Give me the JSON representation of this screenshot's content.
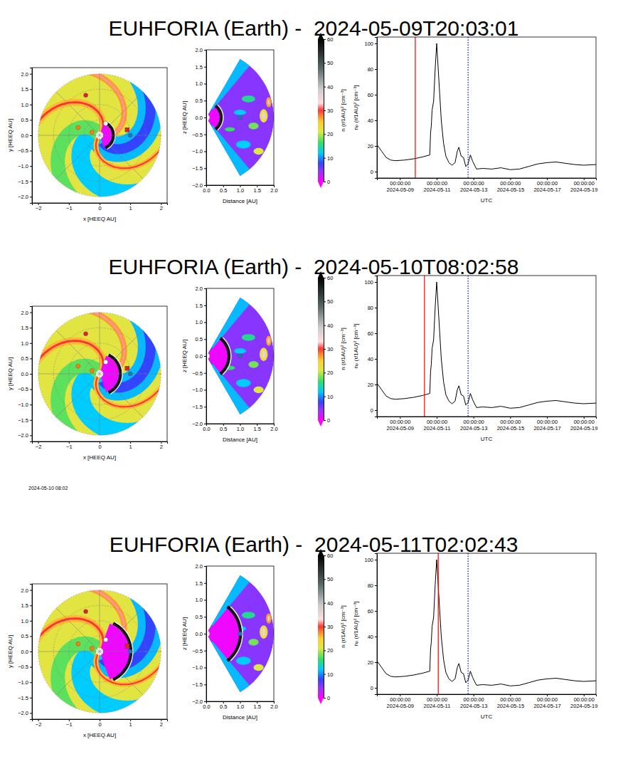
{
  "chart_data": [
    {
      "type": "map",
      "title": "EUHFORIA (Earth) -  2024-05-09T20:03:01",
      "xlabel": "x [HEEQ AU]",
      "ylabel": "y [HEEQ AU]",
      "xlim": [
        -2.2,
        2.2
      ],
      "ylim": [
        -2.2,
        2.2
      ],
      "xticks": [
        {
          "value": -2,
          "label": "−2"
        },
        {
          "value": -1,
          "label": "−1"
        },
        0,
        1,
        2
      ],
      "yticks": [
        {
          "value": -2,
          "label": "−2.0"
        },
        {
          "value": -1.5,
          "label": "−1.5"
        },
        {
          "value": -1,
          "label": "−1.0"
        },
        {
          "value": -0.5,
          "label": "−0.5"
        },
        {
          "value": 0,
          "label": "0.0"
        },
        0.5,
        {
          "value": 1,
          "label": "1.0"
        },
        1.5,
        {
          "value": 2,
          "label": "2.0"
        }
      ],
      "grid": true,
      "series": [
        {
          "marker": "circle",
          "x": [
            -0.45,
            -0.7,
            -0.25,
            0.2,
            1.0
          ],
          "values": [
            1.3,
            0.25,
            0.1,
            0.38,
            0.0
          ],
          "colors": [
            "#d62728",
            "#ff7f0e",
            "#ff7f0e",
            "#ffffff",
            "#1f77b4"
          ]
        },
        {
          "marker": "square",
          "x": [
            0.9
          ],
          "values": [
            0.18
          ],
          "color": "#d62728"
        }
      ]
    },
    {
      "type": "wedge",
      "xlabel": "Distance [AU]",
      "ylabel": "z [HEEQ AU]",
      "xlim": [
        0,
        2
      ],
      "ylim": [
        -2,
        2
      ],
      "xticks": [
        {
          "value": 0,
          "label": "0.0"
        },
        0.5,
        {
          "value": 1,
          "label": "1.0"
        },
        1.5,
        {
          "value": 2,
          "label": "2.0"
        }
      ],
      "yticks": [
        {
          "value": -2,
          "label": "−2.0"
        },
        {
          "value": -1.5,
          "label": "−1.5"
        },
        {
          "value": -1,
          "label": "−1.0"
        },
        {
          "value": -0.5,
          "label": "−0.5"
        },
        {
          "value": 0,
          "label": "0.0"
        },
        0.5,
        {
          "value": 1,
          "label": "1.0"
        },
        1.5,
        {
          "value": 2,
          "label": "2.0"
        }
      ],
      "series": [
        {
          "marker": "circle",
          "x": [
            1.0
          ],
          "values": [
            0.0
          ],
          "color": "#1f77b4"
        }
      ],
      "colorbar": {
        "range": [
          0,
          60
        ],
        "ticks": [
          0,
          10,
          20,
          30,
          40,
          50,
          60
        ],
        "label": "n (r/1AU)² [cm⁻³]"
      }
    },
    {
      "type": "line",
      "xlabel": "UTC",
      "ylabel": "nₚ (r/1AU)² [cm⁻³]",
      "xlim": [
        "2024-05-07T18:00",
        "2024-05-19T16:00"
      ],
      "ylim": [
        -5,
        105
      ],
      "xticks": [
        {
          "value": "2024-05-09T00:00",
          "label": "00:00:00\n2024-05-09"
        },
        {
          "value": "2024-05-11T00:00",
          "label": "00:00:00\n2024-05-11"
        },
        {
          "value": "2024-05-13T00:00",
          "label": "00:00:00\n2024-05-13"
        },
        {
          "value": "2024-05-15T00:00",
          "label": "00:00:00\n2024-05-15"
        },
        {
          "value": "2024-05-17T00:00",
          "label": "00:00:00\n2024-05-17"
        },
        {
          "value": "2024-05-19T00:00",
          "label": "00:00:00\n2024-05-19"
        }
      ],
      "yticks": [
        0,
        20,
        40,
        60,
        80,
        100
      ],
      "x": [
        "2024-05-07T18:00",
        "2024-05-08T00:00",
        "2024-05-08T06:00",
        "2024-05-08T12:00",
        "2024-05-08T18:00",
        "2024-05-09T06:00",
        "2024-05-09T18:00",
        "2024-05-10T06:00",
        "2024-05-10T15:00",
        "2024-05-10T16:00",
        "2024-05-10T17:00",
        "2024-05-10T18:00",
        "2024-05-10T20:00",
        "2024-05-10T22:00",
        "2024-05-11T00:00",
        "2024-05-11T03:00",
        "2024-05-11T06:00",
        "2024-05-11T09:00",
        "2024-05-11T12:00",
        "2024-05-11T16:00",
        "2024-05-11T20:00",
        "2024-05-12T00:00",
        "2024-05-12T03:00",
        "2024-05-12T05:00",
        "2024-05-12T08:00",
        "2024-05-12T11:00",
        "2024-05-12T14:00",
        "2024-05-12T17:00",
        "2024-05-12T20:00",
        "2024-05-12T23:00",
        "2024-05-13T04:00",
        "2024-05-13T12:00",
        "2024-05-14T00:00",
        "2024-05-14T12:00",
        "2024-05-15T00:00",
        "2024-05-15T12:00",
        "2024-05-16T00:00",
        "2024-05-16T12:00",
        "2024-05-17T00:00",
        "2024-05-17T12:00",
        "2024-05-18T00:00",
        "2024-05-18T12:00",
        "2024-05-19T00:00",
        "2024-05-19T16:00"
      ],
      "series": [
        {
          "color": "#000000",
          "values": [
            21,
            16,
            11,
            9,
            8.5,
            9,
            10,
            11.5,
            13,
            30,
            36,
            48,
            55,
            80,
            100,
            70,
            40,
            22,
            12,
            7,
            5,
            7,
            16,
            19,
            12,
            11,
            4,
            6,
            13,
            8,
            2,
            2.5,
            2,
            3,
            1.5,
            2,
            4,
            6,
            7,
            7.5,
            6.5,
            5.5,
            5,
            5.5
          ]
        }
      ],
      "vlines": [
        {
          "x": "2024-05-09T20:03:01",
          "color": "#ff0000",
          "line_style": "solid"
        },
        {
          "x": "2024-05-12T17:00",
          "color": "#0000ff",
          "line_style": "dotted"
        }
      ]
    },
    {
      "type": "map",
      "title": "EUHFORIA (Earth) -  2024-05-10T08:02:58",
      "xlabel": "x [HEEQ AU]",
      "ylabel": "y [HEEQ AU]",
      "xlim": [
        -2.2,
        2.2
      ],
      "ylim": [
        -2.2,
        2.2
      ],
      "xticks": [
        {
          "value": -2,
          "label": "−2"
        },
        {
          "value": -1,
          "label": "−1"
        },
        0,
        1,
        2
      ],
      "yticks": [
        {
          "value": -2,
          "label": "−2.0"
        },
        {
          "value": -1.5,
          "label": "−1.5"
        },
        {
          "value": -1,
          "label": "−1.0"
        },
        {
          "value": -0.5,
          "label": "−0.5"
        },
        {
          "value": 0,
          "label": "0.0"
        },
        0.5,
        {
          "value": 1,
          "label": "1.0"
        },
        1.5,
        {
          "value": 2,
          "label": "2.0"
        }
      ],
      "grid": true,
      "annotations": [
        "2024-05-10 08:02"
      ],
      "series": [
        {
          "marker": "circle",
          "x": [
            -0.45,
            -0.7,
            -0.25,
            0.2,
            1.0
          ],
          "values": [
            1.3,
            0.25,
            0.1,
            0.38,
            0.0
          ],
          "colors": [
            "#d62728",
            "#ff7f0e",
            "#ff7f0e",
            "#ffffff",
            "#1f77b4"
          ]
        },
        {
          "marker": "square",
          "x": [
            0.9
          ],
          "values": [
            0.18
          ],
          "color": "#d62728"
        }
      ]
    },
    {
      "type": "wedge",
      "xlabel": "Distance [AU]",
      "ylabel": "z [HEEQ AU]",
      "xlim": [
        0,
        2
      ],
      "ylim": [
        -2,
        2
      ],
      "xticks": [
        {
          "value": 0,
          "label": "0.0"
        },
        0.5,
        {
          "value": 1,
          "label": "1.0"
        },
        1.5,
        {
          "value": 2,
          "label": "2.0"
        }
      ],
      "yticks": [
        {
          "value": -2,
          "label": "−2.0"
        },
        {
          "value": -1.5,
          "label": "−1.5"
        },
        {
          "value": -1,
          "label": "−1.0"
        },
        {
          "value": -0.5,
          "label": "−0.5"
        },
        {
          "value": 0,
          "label": "0.0"
        },
        0.5,
        {
          "value": 1,
          "label": "1.0"
        },
        1.5,
        {
          "value": 2,
          "label": "2.0"
        }
      ],
      "series": [
        {
          "marker": "circle",
          "x": [
            1.0
          ],
          "values": [
            0.0
          ],
          "color": "#1f77b4"
        }
      ],
      "colorbar": {
        "range": [
          0,
          60
        ],
        "ticks": [
          0,
          10,
          20,
          30,
          40,
          50,
          60
        ],
        "label": "n (r/1AU)² [cm⁻³]"
      }
    },
    {
      "type": "line",
      "xlabel": "UTC",
      "ylabel": "nₚ (r/1AU)² [cm⁻³]",
      "xlim": [
        "2024-05-07T18:00",
        "2024-05-19T16:00"
      ],
      "ylim": [
        -5,
        105
      ],
      "xticks": [
        {
          "value": "2024-05-09T00:00",
          "label": "00:00:00\n2024-05-09"
        },
        {
          "value": "2024-05-11T00:00",
          "label": "00:00:00\n2024-05-11"
        },
        {
          "value": "2024-05-13T00:00",
          "label": "00:00:00\n2024-05-13"
        },
        {
          "value": "2024-05-15T00:00",
          "label": "00:00:00\n2024-05-15"
        },
        {
          "value": "2024-05-17T00:00",
          "label": "00:00:00\n2024-05-17"
        },
        {
          "value": "2024-05-19T00:00",
          "label": "00:00:00\n2024-05-19"
        }
      ],
      "yticks": [
        0,
        20,
        40,
        60,
        80,
        100
      ],
      "x": [
        "2024-05-07T18:00",
        "2024-05-08T00:00",
        "2024-05-08T06:00",
        "2024-05-08T12:00",
        "2024-05-08T18:00",
        "2024-05-09T06:00",
        "2024-05-09T18:00",
        "2024-05-10T06:00",
        "2024-05-10T15:00",
        "2024-05-10T16:00",
        "2024-05-10T17:00",
        "2024-05-10T18:00",
        "2024-05-10T20:00",
        "2024-05-10T22:00",
        "2024-05-11T00:00",
        "2024-05-11T03:00",
        "2024-05-11T06:00",
        "2024-05-11T09:00",
        "2024-05-11T12:00",
        "2024-05-11T16:00",
        "2024-05-11T20:00",
        "2024-05-12T00:00",
        "2024-05-12T03:00",
        "2024-05-12T05:00",
        "2024-05-12T08:00",
        "2024-05-12T11:00",
        "2024-05-12T14:00",
        "2024-05-12T17:00",
        "2024-05-12T20:00",
        "2024-05-12T23:00",
        "2024-05-13T04:00",
        "2024-05-13T12:00",
        "2024-05-14T00:00",
        "2024-05-14T12:00",
        "2024-05-15T00:00",
        "2024-05-15T12:00",
        "2024-05-16T00:00",
        "2024-05-16T12:00",
        "2024-05-17T00:00",
        "2024-05-17T12:00",
        "2024-05-18T00:00",
        "2024-05-18T12:00",
        "2024-05-19T00:00",
        "2024-05-19T16:00"
      ],
      "series": [
        {
          "color": "#000000",
          "values": [
            21,
            16,
            11,
            9,
            8.5,
            9,
            10,
            11.5,
            13,
            30,
            36,
            48,
            55,
            80,
            100,
            70,
            40,
            22,
            12,
            7,
            5,
            7,
            16,
            19,
            12,
            11,
            4,
            6,
            13,
            8,
            2,
            2.5,
            2,
            3,
            1.5,
            2,
            4,
            6,
            7,
            7.5,
            6.5,
            5.5,
            5,
            5.5
          ]
        }
      ],
      "vlines": [
        {
          "x": "2024-05-10T08:02:58",
          "color": "#ff0000",
          "line_style": "solid"
        },
        {
          "x": "2024-05-12T17:00",
          "color": "#0000ff",
          "line_style": "dotted"
        }
      ]
    },
    {
      "type": "map",
      "title": "EUHFORIA (Earth) -  2024-05-11T02:02:43",
      "xlabel": "x [HEEQ AU]",
      "ylabel": "y [HEEQ AU]",
      "xlim": [
        -2.2,
        2.2
      ],
      "ylim": [
        -2.2,
        2.2
      ],
      "xticks": [
        {
          "value": -2,
          "label": "−2"
        },
        {
          "value": -1,
          "label": "−1"
        },
        0,
        1,
        2
      ],
      "yticks": [
        {
          "value": -2,
          "label": "−2.0"
        },
        {
          "value": -1.5,
          "label": "−1.5"
        },
        {
          "value": -1,
          "label": "−1.0"
        },
        {
          "value": -0.5,
          "label": "−0.5"
        },
        {
          "value": 0,
          "label": "0.0"
        },
        0.5,
        {
          "value": 1,
          "label": "1.0"
        },
        1.5,
        {
          "value": 2,
          "label": "2.0"
        }
      ],
      "grid": true,
      "series": [
        {
          "marker": "circle",
          "x": [
            -0.45,
            -0.7,
            -0.25,
            0.2,
            1.0
          ],
          "values": [
            1.3,
            0.25,
            0.1,
            0.38,
            0.0
          ],
          "colors": [
            "#d62728",
            "#ff7f0e",
            "#ff7f0e",
            "#ffffff",
            "#1f77b4"
          ]
        },
        {
          "marker": "square",
          "x": [
            0.9
          ],
          "values": [
            0.18
          ],
          "color": "#d62728"
        }
      ]
    },
    {
      "type": "wedge",
      "xlabel": "Distance [AU]",
      "ylabel": "z [HEEQ AU]",
      "xlim": [
        0,
        2
      ],
      "ylim": [
        -2,
        2
      ],
      "xticks": [
        {
          "value": 0,
          "label": "0.0"
        },
        0.5,
        {
          "value": 1,
          "label": "1.0"
        },
        1.5,
        {
          "value": 2,
          "label": "2.0"
        }
      ],
      "yticks": [
        {
          "value": -2,
          "label": "−2.0"
        },
        {
          "value": -1.5,
          "label": "−1.5"
        },
        {
          "value": -1,
          "label": "−1.0"
        },
        {
          "value": -0.5,
          "label": "−0.5"
        },
        {
          "value": 0,
          "label": "0.0"
        },
        0.5,
        {
          "value": 1,
          "label": "1.0"
        },
        1.5,
        {
          "value": 2,
          "label": "2.0"
        }
      ],
      "series": [
        {
          "marker": "circle",
          "x": [
            1.0
          ],
          "values": [
            0.0
          ],
          "color": "#1f77b4"
        }
      ],
      "colorbar": {
        "range": [
          0,
          60
        ],
        "ticks": [
          0,
          10,
          20,
          30,
          40,
          50,
          60
        ],
        "label": "n (r/1AU)² [cm⁻³]"
      }
    },
    {
      "type": "line",
      "xlabel": "UTC",
      "ylabel": "nₚ (r/1AU)² [cm⁻³]",
      "xlim": [
        "2024-05-07T18:00",
        "2024-05-19T16:00"
      ],
      "ylim": [
        -5,
        105
      ],
      "xticks": [
        {
          "value": "2024-05-09T00:00",
          "label": "00:00:00\n2024-05-09"
        },
        {
          "value": "2024-05-11T00:00",
          "label": "00:00:00\n2024-05-11"
        },
        {
          "value": "2024-05-13T00:00",
          "label": "00:00:00\n2024-05-13"
        },
        {
          "value": "2024-05-15T00:00",
          "label": "00:00:00\n2024-05-15"
        },
        {
          "value": "2024-05-17T00:00",
          "label": "00:00:00\n2024-05-17"
        },
        {
          "value": "2024-05-19T00:00",
          "label": "00:00:00\n2024-05-19"
        }
      ],
      "yticks": [
        0,
        20,
        40,
        60,
        80,
        100
      ],
      "x": [
        "2024-05-07T18:00",
        "2024-05-08T00:00",
        "2024-05-08T06:00",
        "2024-05-08T12:00",
        "2024-05-08T18:00",
        "2024-05-09T06:00",
        "2024-05-09T18:00",
        "2024-05-10T06:00",
        "2024-05-10T15:00",
        "2024-05-10T16:00",
        "2024-05-10T17:00",
        "2024-05-10T18:00",
        "2024-05-10T20:00",
        "2024-05-10T22:00",
        "2024-05-11T00:00",
        "2024-05-11T03:00",
        "2024-05-11T06:00",
        "2024-05-11T09:00",
        "2024-05-11T12:00",
        "2024-05-11T16:00",
        "2024-05-11T20:00",
        "2024-05-12T00:00",
        "2024-05-12T03:00",
        "2024-05-12T05:00",
        "2024-05-12T08:00",
        "2024-05-12T11:00",
        "2024-05-12T14:00",
        "2024-05-12T17:00",
        "2024-05-12T20:00",
        "2024-05-12T23:00",
        "2024-05-13T04:00",
        "2024-05-13T12:00",
        "2024-05-14T00:00",
        "2024-05-14T12:00",
        "2024-05-15T00:00",
        "2024-05-15T12:00",
        "2024-05-16T00:00",
        "2024-05-16T12:00",
        "2024-05-17T00:00",
        "2024-05-17T12:00",
        "2024-05-18T00:00",
        "2024-05-18T12:00",
        "2024-05-19T00:00",
        "2024-05-19T16:00"
      ],
      "series": [
        {
          "color": "#000000",
          "values": [
            21,
            16,
            11,
            9,
            8.5,
            9,
            10,
            11.5,
            13,
            30,
            36,
            48,
            55,
            80,
            100,
            70,
            40,
            22,
            12,
            7,
            5,
            7,
            16,
            19,
            12,
            11,
            4,
            6,
            13,
            8,
            2,
            2.5,
            2,
            3,
            1.5,
            2,
            4,
            6,
            7,
            7.5,
            6.5,
            5.5,
            5,
            5.5
          ]
        }
      ],
      "vlines": [
        {
          "x": "2024-05-11T02:02:43",
          "color": "#ff0000",
          "line_style": "solid"
        },
        {
          "x": "2024-05-12T17:00",
          "color": "#0000ff",
          "line_style": "dotted"
        }
      ]
    }
  ]
}
